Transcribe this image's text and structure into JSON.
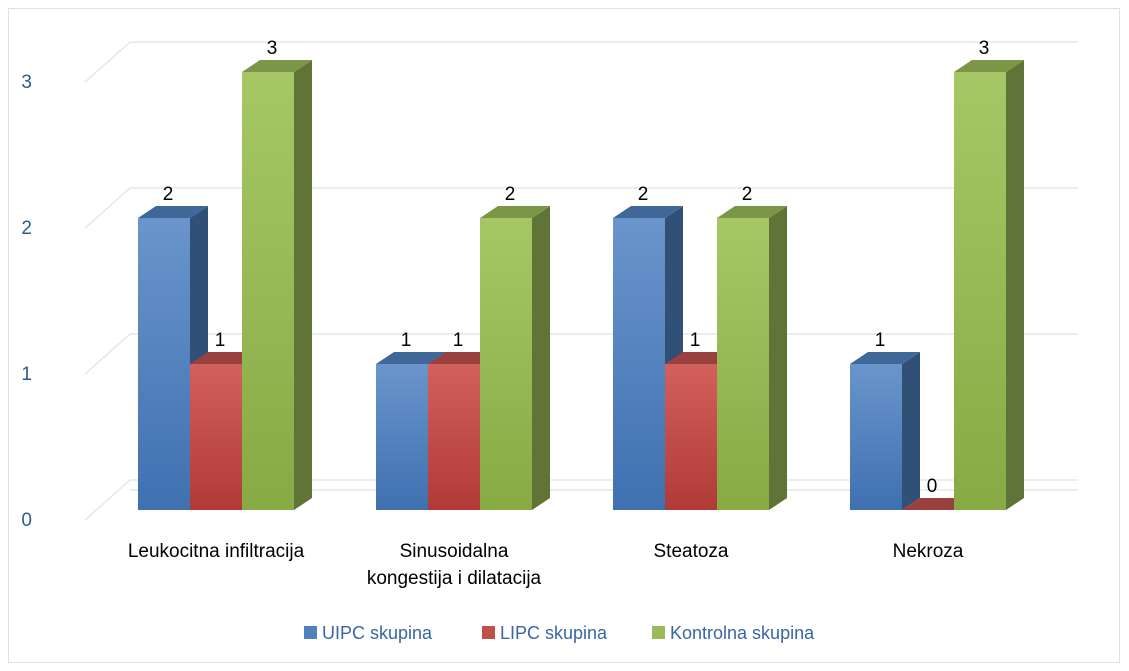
{
  "chart_data": {
    "type": "bar",
    "categories": [
      [
        "Leukocitna infiltracija"
      ],
      [
        "Sinusoidalna",
        "kongestija i dilatacija"
      ],
      [
        "Steatoza"
      ],
      [
        "Nekroza"
      ]
    ],
    "series": [
      {
        "name": "UIPC skupina",
        "values": [
          2,
          1,
          2,
          1
        ],
        "color": "#4f81bd"
      },
      {
        "name": "LIPC skupina",
        "values": [
          1,
          1,
          1,
          0
        ],
        "color": "#c0504d"
      },
      {
        "name": "Kontrolna skupina",
        "values": [
          3,
          2,
          2,
          3
        ],
        "color": "#9bbb59"
      }
    ],
    "yticks": [
      0,
      1,
      2,
      3
    ],
    "ylim": [
      0,
      3
    ],
    "grid": true,
    "style": "3d-clustered-column",
    "legend_position": "bottom"
  }
}
